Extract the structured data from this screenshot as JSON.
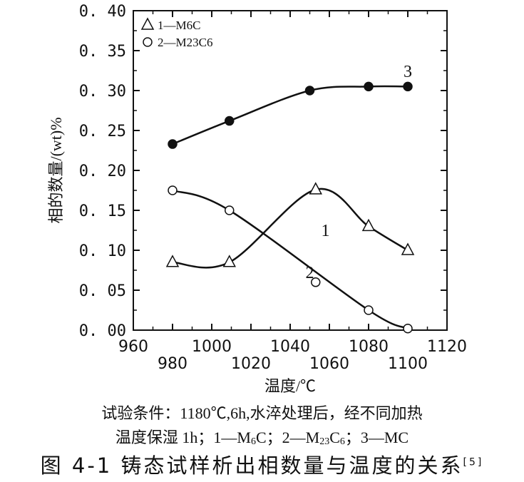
{
  "chart_data": {
    "type": "line",
    "xlabel": "温度/℃",
    "ylabel": "相的数量/(wt)%",
    "xlim": [
      960,
      1120
    ],
    "ylim": [
      0,
      0.4
    ],
    "xticks": [
      960,
      980,
      1000,
      1020,
      1040,
      1060,
      1080,
      1100,
      1120
    ],
    "xtick_labels": [
      "960",
      "980",
      "1000",
      "1020",
      "1040",
      "1060",
      "1080",
      "1100",
      "1120"
    ],
    "yticks": [
      0,
      0.05,
      0.1,
      0.15,
      0.2,
      0.25,
      0.3,
      0.35,
      0.4
    ],
    "ytick_labels": [
      "0. 00",
      "0. 05",
      "0. 10",
      "0. 15",
      "0. 20",
      "0. 25",
      "0. 30",
      "0. 35",
      "0. 40"
    ],
    "series": [
      {
        "name": "1",
        "label": "1—M6C",
        "marker": "triangle-open",
        "x": [
          980,
          1009,
          1053,
          1080,
          1100
        ],
        "y": [
          0.085,
          0.085,
          0.176,
          0.13,
          0.1
        ]
      },
      {
        "name": "2",
        "label": "2—M23C6",
        "marker": "circle-open",
        "x": [
          980,
          1009,
          1053,
          1080,
          1100
        ],
        "y": [
          0.175,
          0.15,
          0.06,
          0.025,
          0.002
        ]
      },
      {
        "name": "3",
        "label": "3—MC",
        "marker": "circle-filled",
        "x": [
          980,
          1009,
          1050,
          1080,
          1100
        ],
        "y": [
          0.233,
          0.262,
          0.3,
          0.305,
          0.305
        ]
      }
    ]
  },
  "caption": {
    "line1": "试验条件：1180℃,6h,水淬处理后，经不同加热",
    "line2_prefix": "温度保湿 1h；1—M",
    "s1": "6",
    "m1": "C；2—M",
    "s2": "23",
    "m2": "C",
    "s3": "6",
    "line2_suffix": "；3—MC",
    "title": "图 4-1 铸态试样析出相数量与温度的关系",
    "ref": "[5]"
  }
}
